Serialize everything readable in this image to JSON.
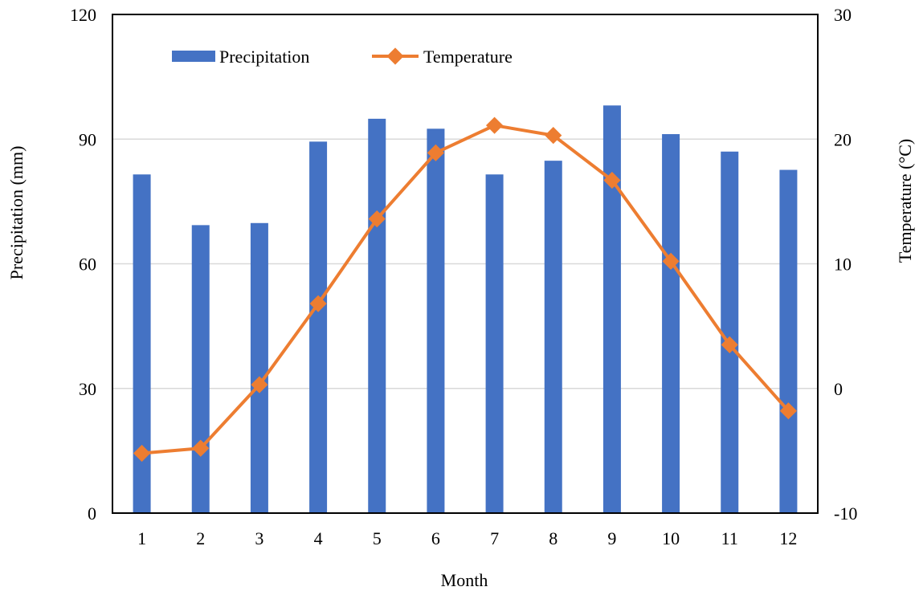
{
  "chart_data": {
    "type": "bar",
    "title": "",
    "xlabel": "Month",
    "ylabel": "Precipitation (mm)",
    "y2label": "Temperature (°C)",
    "categories": [
      "1",
      "2",
      "3",
      "4",
      "5",
      "6",
      "7",
      "8",
      "9",
      "10",
      "11",
      "12"
    ],
    "ylim": [
      0,
      120
    ],
    "y_ticks": [
      0,
      30,
      60,
      90,
      120
    ],
    "y2lim": [
      -10,
      30
    ],
    "y2_ticks": [
      -10,
      0,
      10,
      20,
      30
    ],
    "grid": true,
    "legend_position": "top-left",
    "series": [
      {
        "name": "Precipitation",
        "type": "bar",
        "axis": "left",
        "color": "#4472C4",
        "values": [
          81.5,
          69.3,
          69.8,
          89.4,
          94.9,
          92.5,
          81.5,
          84.8,
          98.1,
          91.2,
          87.0,
          82.6
        ]
      },
      {
        "name": "Temperature",
        "type": "line",
        "axis": "right",
        "marker": "diamond",
        "color": "#ED7D31",
        "values": [
          -5.2,
          -4.8,
          0.3,
          6.8,
          13.6,
          18.9,
          21.1,
          20.3,
          16.7,
          10.2,
          3.5,
          -1.8
        ]
      }
    ]
  }
}
